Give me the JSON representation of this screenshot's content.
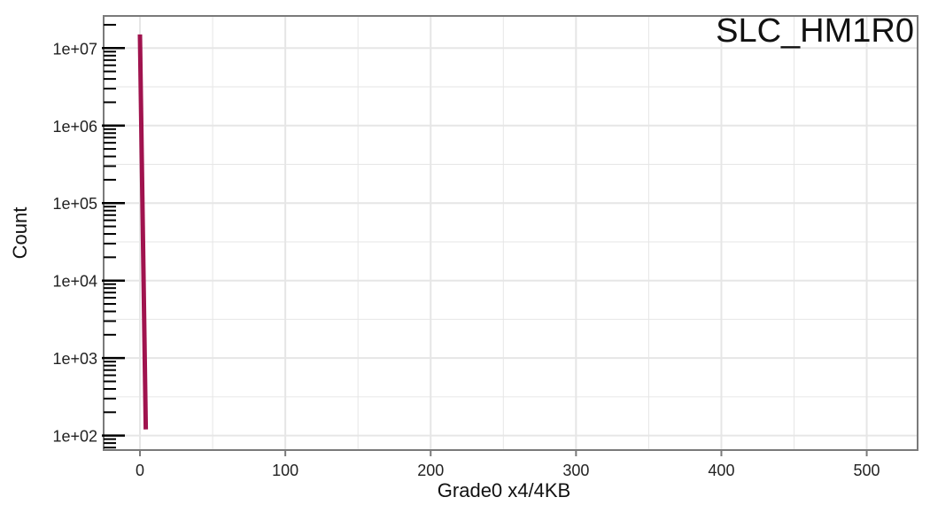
{
  "chart_data": {
    "type": "line",
    "title": "SLC_HM1R0",
    "xlabel": "Grade0 x4/4KB",
    "ylabel": "Count",
    "x_ticks": [
      0,
      100,
      200,
      300,
      400,
      500
    ],
    "x_tick_labels": [
      "0",
      "100",
      "200",
      "300",
      "400",
      "500"
    ],
    "y_scale": "log10",
    "y_ticks": [
      100,
      1000,
      10000,
      100000,
      1000000,
      10000000
    ],
    "y_tick_labels": [
      "1e+02",
      "1e+03",
      "1e+04",
      "1e+05",
      "1e+06",
      "1e+07"
    ],
    "xlim": [
      -25,
      535
    ],
    "ylim": [
      65,
      26000000
    ],
    "grid": true,
    "series": [
      {
        "x": [
          0,
          4
        ],
        "y": [
          15000000,
          120
        ]
      }
    ],
    "colors": {
      "line": "#a0134e",
      "grid": "#e6e6e6",
      "frame": "#7a7a7a",
      "ticks": "#000000"
    }
  }
}
